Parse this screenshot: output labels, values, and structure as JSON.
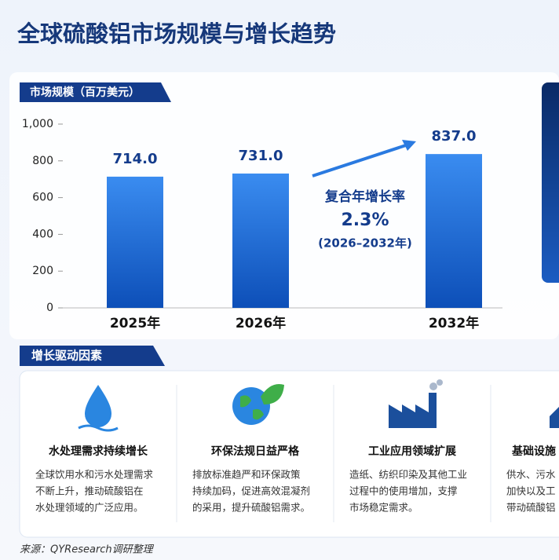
{
  "header": {
    "title": "全球硫酸铝市场规模与增长趋势"
  },
  "chart_data": {
    "type": "bar",
    "ylabel": "市场规模（百万美元）",
    "categories": [
      "2025年",
      "2026年",
      "2032年"
    ],
    "values": [
      714,
      731,
      837
    ],
    "value_labels": [
      "714.0",
      "731.0",
      "837.0"
    ],
    "color": "#1e6fd9",
    "ylim": [
      0,
      1000
    ],
    "yticks": [
      0,
      200,
      400,
      600,
      800,
      {
        "value": 1000,
        "label": "1,000"
      }
    ],
    "annotations": [
      "复合年增长率",
      "2.3%",
      "(2026–2032年)"
    ]
  },
  "drivers": {
    "title": "增长驱动因素",
    "cards": [
      {
        "title": "水处理需求持续增长",
        "lines": [
          "全球饮用水和污水处理需求",
          "不断上升，推动硫酸铝在",
          "水处理领域的广泛应用。"
        ]
      },
      {
        "title": "环保法规日益严格",
        "lines": [
          "排放标准趋严和环保政策",
          "持续加码，促进高效混凝剂",
          "的采用，提升硫酸铝需求。"
        ]
      },
      {
        "title": "工业应用领域扩展",
        "lines": [
          "造纸、纺织印染及其他工业",
          "过程中的使用增加，支撑",
          "市场稳定需求。"
        ]
      },
      {
        "title": "基础设施",
        "lines": [
          "供水、污水",
          "加快以及工",
          "带动硫酸铝"
        ]
      }
    ]
  },
  "footer": {
    "source": "来源：QYResearch调研整理"
  }
}
